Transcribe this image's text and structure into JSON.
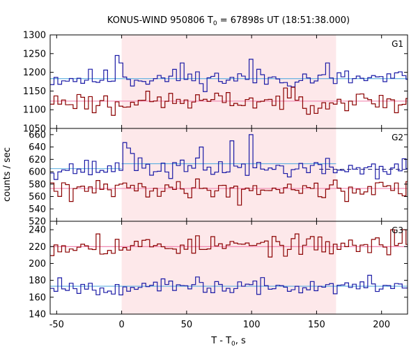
{
  "chart_data": {
    "type": "line",
    "title_main": "KONUS-WIND 950806 T",
    "title_sub": "0",
    "title_rest": " = 67898s UT (18:51:38.000)",
    "xlabel_main": "T - T",
    "xlabel_sub": "0",
    "xlabel_rest": ", s",
    "ylabel": "counts / sec",
    "xlim": [
      -55,
      220
    ],
    "x_ticks": [
      -50,
      0,
      50,
      100,
      150,
      200
    ],
    "x_tick_labels": [
      "-50",
      "0",
      "50",
      "100",
      "150",
      "200"
    ],
    "highlight_interval": [
      0,
      165
    ],
    "highlight_color": "#fde8ea",
    "bin_width": 2.944,
    "colors": {
      "blue": "#1a1aa6",
      "red": "#8b0000",
      "light_blue": "#5aaee0",
      "pink": "#f07aa8"
    },
    "panels": [
      {
        "name": "G1",
        "ylim": [
          1050,
          1300
        ],
        "y_ticks": [
          1050,
          1100,
          1150,
          1200,
          1250,
          1300
        ],
        "y_tick_labels": [
          "1050",
          "1100",
          "1150",
          "1200",
          "1250",
          "1300"
        ],
        "series": [
          {
            "color": "blue",
            "base": 1183,
            "amp": 18,
            "seed": 11,
            "spikes": [
              [
                -4,
                1245
              ],
              [
                -2,
                1225
              ],
              [
                98,
                1235
              ],
              [
                158,
                1225
              ],
              [
                44,
                1225
              ]
            ]
          },
          {
            "color": "red",
            "base": 1123,
            "amp": 18,
            "seed": 23,
            "spikes": [
              [
                -22,
                1092
              ],
              [
                -8,
                1085
              ],
              [
                143,
                1088
              ],
              [
                211,
                1092
              ],
              [
                130,
                1160
              ]
            ]
          }
        ],
        "background_lines": [
          {
            "color": "light_blue",
            "value": 1183
          },
          {
            "color": "pink",
            "value": 1123
          }
        ]
      },
      {
        "name": "G2",
        "ylim": [
          520,
          670
        ],
        "y_ticks": [
          520,
          540,
          560,
          580,
          600,
          620,
          640,
          660
        ],
        "y_tick_labels": [
          "520",
          "540",
          "560",
          "580",
          "600",
          "620",
          "640",
          "660"
        ],
        "series": [
          {
            "color": "blue",
            "base": 605,
            "amp": 11,
            "seed": 37,
            "spikes": [
              [
                0.5,
                655
              ],
              [
                3.5,
                652
              ],
              [
                98,
                660
              ],
              [
                83,
                650
              ],
              [
                60,
                640
              ]
            ]
          },
          {
            "color": "red",
            "base": 573,
            "amp": 10,
            "seed": 41,
            "spikes": [
              [
                88,
                546
              ],
              [
                -40,
                552
              ],
              [
                172,
                552
              ]
            ]
          }
        ],
        "background_lines": [
          {
            "color": "light_blue",
            "value": 613,
            "range": [
              0,
              165
            ]
          },
          {
            "color": "light_blue",
            "value": 605,
            "range": [
              -55,
              0
            ]
          },
          {
            "color": "pink",
            "value": 573
          }
        ],
        "dashed_line": {
          "value": 604,
          "range": [
            152,
            220
          ]
        }
      },
      {
        "name": "G3",
        "ylim": [
          140,
          250
        ],
        "y_ticks": [
          140,
          160,
          180,
          200,
          220,
          240
        ],
        "y_tick_labels": [
          "140",
          "160",
          "180",
          "200",
          "220",
          "240"
        ],
        "series": [
          {
            "color": "red",
            "base": 221,
            "amp": 8,
            "seed": 53,
            "spikes": [
              [
                207,
                240
              ],
              [
                216,
                240
              ],
              [
                -20,
                235
              ],
              [
                115,
                232
              ]
            ]
          },
          {
            "color": "blue",
            "base": 172,
            "amp": 6,
            "seed": 67,
            "spikes": [
              [
                -48,
                183
              ],
              [
                58,
                184
              ],
              [
                188,
                186
              ]
            ]
          }
        ],
        "background_lines": [
          {
            "color": "pink",
            "value": 220
          },
          {
            "color": "light_blue",
            "value": 173
          }
        ]
      }
    ]
  }
}
